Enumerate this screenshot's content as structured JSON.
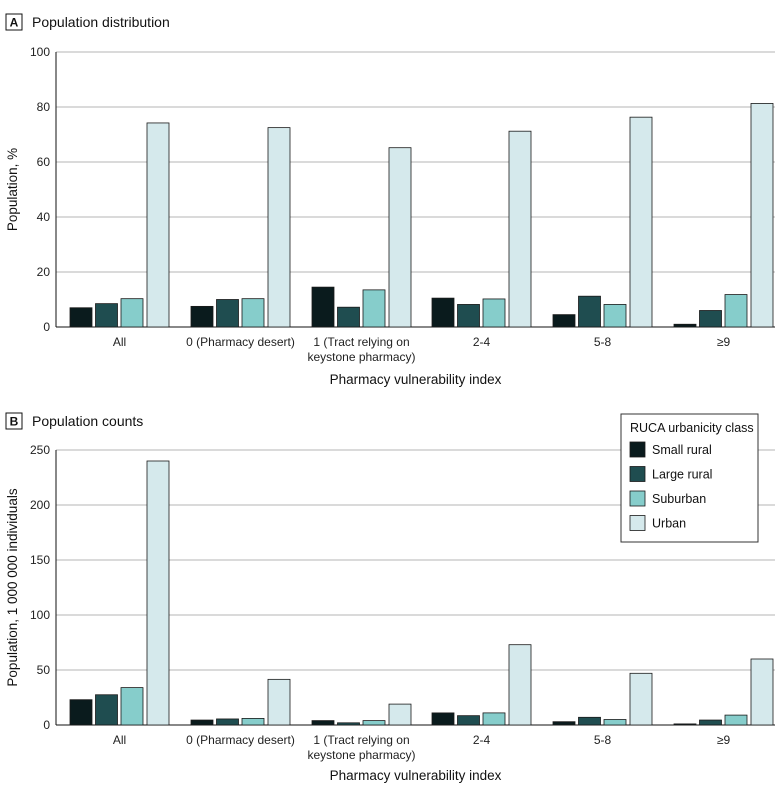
{
  "colors": {
    "small_rural": "#0a1b1d",
    "large_rural": "#1f4d50",
    "suburban": "#86cdcb",
    "urban": "#d5e9ec",
    "grid": "#b5b5b5",
    "bar_stroke": "#1a1a1a"
  },
  "legend": {
    "title": "RUCA urbanicity class",
    "items": [
      "Small rural",
      "Large rural",
      "Suburban",
      "Urban"
    ]
  },
  "chart_data": [
    {
      "type": "bar",
      "panel_letter": "A",
      "title": "Population distribution",
      "xlabel": "Pharmacy vulnerability index",
      "ylabel": "Population, %",
      "ylim": [
        0,
        100
      ],
      "yticks": [
        "0",
        "20",
        "40",
        "60",
        "80",
        "100"
      ],
      "grid": true,
      "categories": [
        [
          "All"
        ],
        [
          "0 (Pharmacy desert)"
        ],
        [
          "1 (Tract relying on",
          "keystone pharmacy)"
        ],
        [
          "2-4"
        ],
        [
          "5-8"
        ],
        [
          "≥9"
        ]
      ],
      "series": [
        {
          "name": "Small rural",
          "values": [
            7,
            7.5,
            14.5,
            10.5,
            4.5,
            1
          ]
        },
        {
          "name": "Large rural",
          "values": [
            8.5,
            10,
            7.2,
            8.2,
            11.2,
            6
          ]
        },
        {
          "name": "Suburban",
          "values": [
            10.3,
            10.3,
            13.5,
            10.2,
            8.2,
            11.8
          ]
        },
        {
          "name": "Urban",
          "values": [
            74.2,
            72.5,
            65.2,
            71.2,
            76.3,
            81.3
          ]
        }
      ]
    },
    {
      "type": "bar",
      "panel_letter": "B",
      "title": "Population counts",
      "xlabel": "Pharmacy vulnerability index",
      "ylabel": "Population, 1 000 000 individuals",
      "ylim": [
        0,
        250
      ],
      "yticks": [
        "0",
        "50",
        "100",
        "150",
        "200",
        "250"
      ],
      "grid": true,
      "legend_position": "top-right",
      "categories": [
        [
          "All"
        ],
        [
          "0 (Pharmacy desert)"
        ],
        [
          "1 (Tract relying on",
          "keystone pharmacy)"
        ],
        [
          "2-4"
        ],
        [
          "5-8"
        ],
        [
          "≥9"
        ]
      ],
      "series": [
        {
          "name": "Small rural",
          "values": [
            23,
            4.5,
            4,
            11,
            3,
            1
          ]
        },
        {
          "name": "Large rural",
          "values": [
            27.5,
            5.5,
            2,
            8.5,
            7,
            4.5
          ]
        },
        {
          "name": "Suburban",
          "values": [
            34,
            6,
            4,
            11,
            5,
            9
          ]
        },
        {
          "name": "Urban",
          "values": [
            240,
            41.5,
            19,
            73,
            47,
            60
          ]
        }
      ]
    }
  ]
}
